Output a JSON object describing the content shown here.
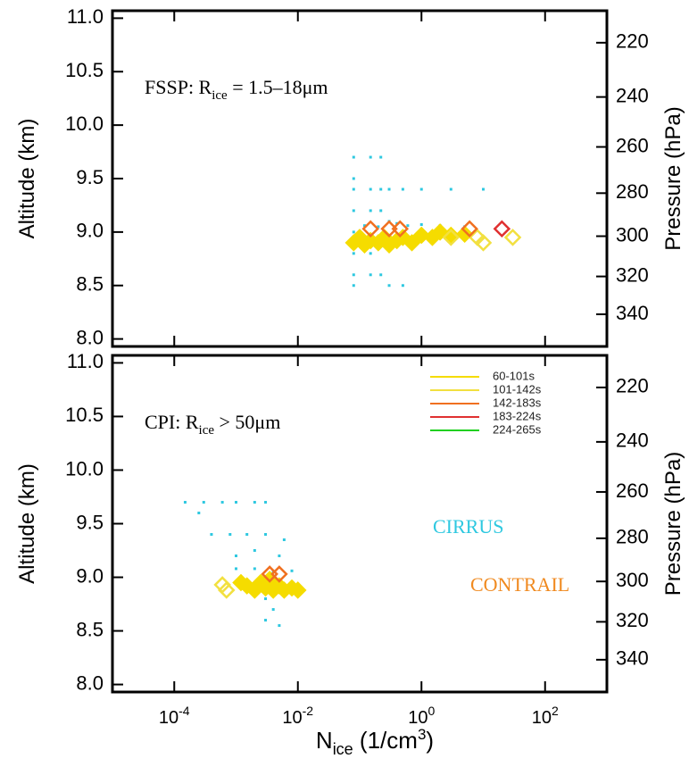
{
  "chart_data": [
    {
      "type": "scatter",
      "xscale": "log",
      "xlim": [
        1e-05,
        1000
      ],
      "ylim": [
        7.93,
        11.07
      ],
      "y2scale": "log",
      "y2lim": [
        358,
        209
      ],
      "ylabel": "Altitude (km)",
      "y2label": "Pressure (hPa)",
      "yticks": [
        {
          "value": 8,
          "label": "8.0"
        },
        8.5,
        {
          "value": 9,
          "label": "9.0"
        },
        9.5,
        {
          "value": 10,
          "label": "10.0"
        },
        10.5,
        {
          "value": 11,
          "label": "11.0"
        }
      ],
      "y2ticks": [
        220,
        240,
        260,
        280,
        300,
        320,
        340
      ],
      "xticks": [
        0.0001,
        0.01,
        1,
        100
      ],
      "annotations": [
        {
          "text": "FSSP: R",
          "sub": "ice",
          "rest": " = 1.5–18μm",
          "color": "#000000"
        }
      ],
      "legend": false,
      "series": [
        {
          "color": "#2ec8e0",
          "marker": "dot",
          "filled": true,
          "x": [
            0.08,
            0.08,
            0.08,
            0.08,
            0.08,
            0.08,
            0.08,
            0.08,
            0.15,
            0.15,
            0.15,
            0.15,
            0.15,
            0.22,
            0.22,
            0.22,
            0.3,
            0.3,
            0.3,
            0.5,
            1,
            3,
            10,
            0.22,
            0.12,
            0.2,
            0.4,
            0.6,
            1,
            0.5,
            2,
            5
          ],
          "y": [
            9.7,
            9.5,
            9.4,
            9.2,
            9.0,
            8.8,
            8.6,
            8.5,
            9.7,
            9.4,
            9.2,
            8.8,
            8.6,
            9.4,
            9.2,
            8.6,
            9.4,
            9.1,
            8.5,
            9.4,
            9.4,
            9.4,
            9.4,
            9.7,
            9.06,
            9.05,
            9.08,
            9.06,
            9.07,
            8.5,
            9.06,
            9.05
          ]
        },
        {
          "color": "#f5dc00",
          "marker": "diamond",
          "filled": true,
          "x": [
            0.08,
            0.1,
            0.12,
            0.15,
            0.2,
            0.25,
            0.3,
            0.4,
            0.5,
            0.7,
            1,
            1.5,
            2,
            3,
            5
          ],
          "y": [
            8.9,
            8.95,
            8.88,
            8.92,
            8.9,
            8.95,
            8.88,
            8.92,
            8.95,
            8.9,
            8.97,
            8.95,
            9.0,
            8.97,
            8.98
          ]
        },
        {
          "color": "#f2e040",
          "marker": "diamond",
          "filled": false,
          "x": [
            3,
            8,
            10,
            30
          ],
          "y": [
            8.95,
            8.95,
            8.9,
            8.95
          ]
        },
        {
          "color": "#f07020",
          "marker": "diamond",
          "filled": false,
          "x": [
            0.15,
            0.3,
            0.45,
            6
          ],
          "y": [
            9.03,
            9.03,
            9.03,
            9.03
          ]
        },
        {
          "color": "#e03030",
          "marker": "diamond",
          "filled": false,
          "x": [
            20
          ],
          "y": [
            9.03
          ]
        }
      ]
    },
    {
      "type": "scatter",
      "xscale": "log",
      "xlim": [
        1e-05,
        1000
      ],
      "ylim": [
        7.93,
        11.07
      ],
      "y2scale": "log",
      "y2lim": [
        358,
        209
      ],
      "ylabel": "Altitude (km)",
      "y2label": "Pressure (hPa)",
      "xlabel": {
        "base": "N",
        "sub": "ice",
        "mid": " (1/cm",
        "sup": "3",
        "end": ")"
      },
      "yticks": [
        {
          "value": 8,
          "label": "8.0"
        },
        8.5,
        {
          "value": 9,
          "label": "9.0"
        },
        9.5,
        {
          "value": 10,
          "label": "10.0"
        },
        10.5,
        {
          "value": 11,
          "label": "11.0"
        }
      ],
      "y2ticks": [
        220,
        240,
        260,
        280,
        300,
        320,
        340
      ],
      "xticks": [
        {
          "value": 0.0001,
          "label": "10",
          "exponent": "-4"
        },
        {
          "value": 0.01,
          "label": "10",
          "exponent": "-2"
        },
        {
          "value": 1,
          "label": "10",
          "exponent": "0"
        },
        {
          "value": 100,
          "label": "10",
          "exponent": "2"
        }
      ],
      "annotations": [
        {
          "text": "CPI: R",
          "sub": "ice",
          "rest": " > 50μm",
          "color": "#000000"
        },
        {
          "text": "CIRRUS",
          "color": "#2ec8e0"
        },
        {
          "text": "CONTRAIL",
          "color": "#f08a20"
        }
      ],
      "legend": "top-right",
      "series": [
        {
          "color": "#2ec8e0",
          "marker": "dot",
          "filled": true,
          "x": [
            0.00015,
            0.0003,
            0.0006,
            0.001,
            0.002,
            0.003,
            0.00025,
            0.0004,
            0.0008,
            0.0015,
            0.003,
            0.006,
            0.001,
            0.002,
            0.005,
            0.001,
            0.002,
            0.004,
            0.008,
            0.003,
            0.004,
            0.005,
            0.003
          ],
          "y": [
            9.7,
            9.7,
            9.7,
            9.7,
            9.7,
            9.7,
            9.6,
            9.4,
            9.4,
            9.4,
            9.4,
            9.35,
            9.2,
            9.25,
            9.2,
            9.08,
            9.08,
            9.05,
            9.06,
            8.8,
            8.7,
            8.55,
            8.6
          ]
        },
        {
          "name": "60-101s",
          "color": "#f5dc00",
          "marker": "diamond",
          "filled": true,
          "x": [
            0.0015,
            0.002,
            0.0025,
            0.003,
            0.004,
            0.005,
            0.006,
            0.008,
            0.01,
            0.0012,
            0.0035
          ],
          "y": [
            8.92,
            8.88,
            8.95,
            8.9,
            8.88,
            8.92,
            8.88,
            8.9,
            8.88,
            8.95,
            8.98
          ]
        },
        {
          "name": "101-142s",
          "color": "#f2e040",
          "marker": "diamond",
          "filled": false,
          "x": [
            0.0006,
            0.0007
          ],
          "y": [
            8.93,
            8.88
          ]
        },
        {
          "name": "142-183s",
          "color": "#f07020",
          "marker": "diamond",
          "filled": false,
          "x": [
            0.0035,
            0.005
          ],
          "y": [
            9.03,
            9.03
          ]
        },
        {
          "name": "183-224s",
          "color": "#e03030",
          "marker": "diamond",
          "filled": false,
          "x": [],
          "y": []
        },
        {
          "name": "224-265s",
          "color": "#20d020",
          "marker": "diamond",
          "filled": false,
          "x": [],
          "y": []
        }
      ]
    }
  ]
}
